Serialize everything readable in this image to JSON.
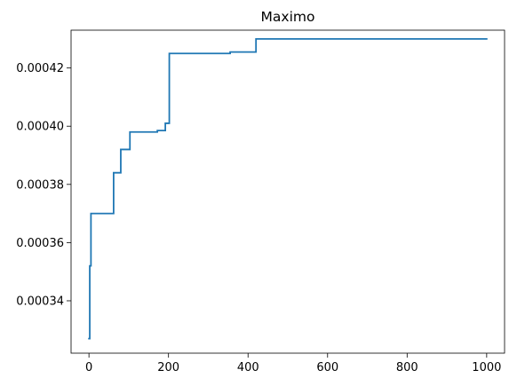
{
  "chart_data": {
    "type": "line",
    "title": "Maximo",
    "xlabel": "",
    "ylabel": "",
    "xlim": [
      -45,
      1045
    ],
    "ylim": [
      0.000322,
      0.000433
    ],
    "x_ticks": [
      0,
      200,
      400,
      600,
      800,
      1000
    ],
    "x_tick_labels": [
      "0",
      "200",
      "400",
      "600",
      "800",
      "1000"
    ],
    "y_ticks": [
      0.00034,
      0.00036,
      0.00038,
      0.0004,
      0.00042
    ],
    "y_tick_labels": [
      "0.00034",
      "0.00036",
      "0.00038",
      "0.00040",
      "0.00042"
    ],
    "grid": false,
    "step": true,
    "series": [
      {
        "color": "#1f77b4",
        "x": [
          0,
          2,
          5,
          62,
          80,
          103,
          172,
          192,
          202,
          355,
          420,
          1000
        ],
        "y": [
          0.000327,
          0.000352,
          0.00037,
          0.000384,
          0.000392,
          0.000398,
          0.0003985,
          0.000401,
          0.000425,
          0.0004255,
          0.00043,
          0.00043
        ]
      }
    ]
  }
}
